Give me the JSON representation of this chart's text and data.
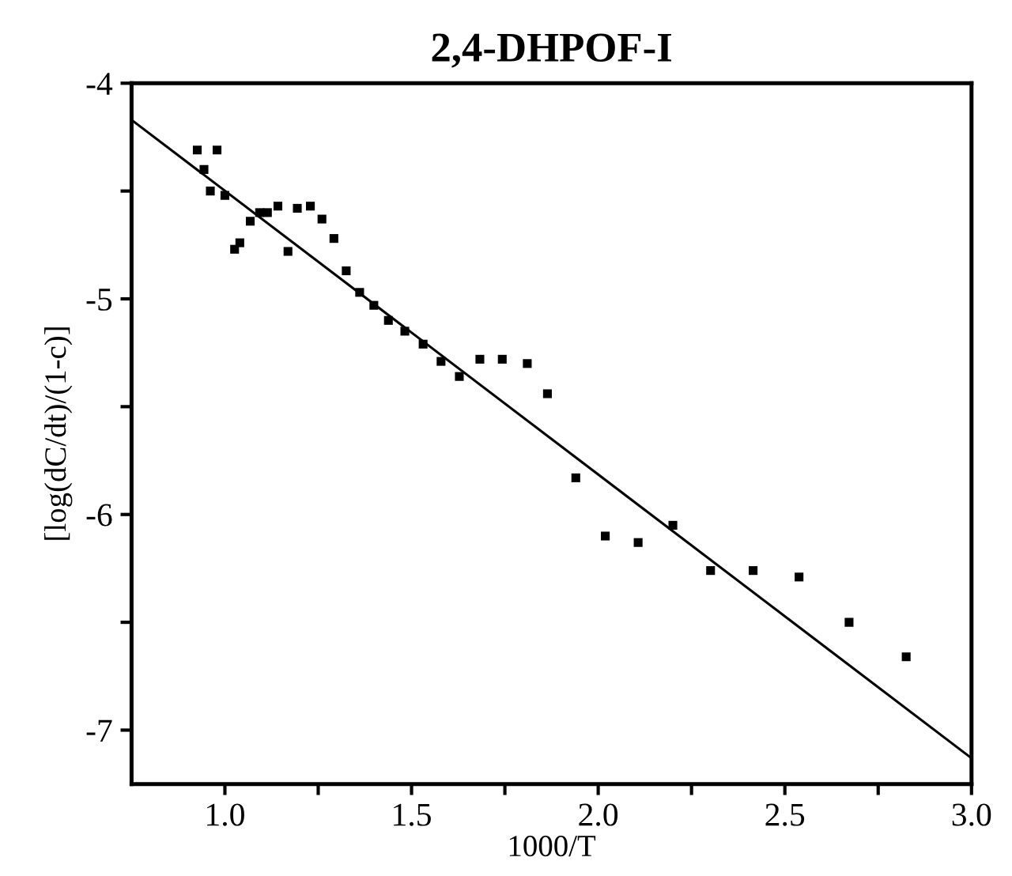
{
  "chart_data": {
    "type": "scatter",
    "title": "2,4-DHPOF-I",
    "xlabel": "1000/T",
    "ylabel": "[log(dC/dt)/(1-c)]",
    "xlim": [
      0.75,
      3.0
    ],
    "ylim": [
      -7.25,
      -4.0
    ],
    "xticks": [
      {
        "value": 1.0,
        "label": "1.0"
      },
      {
        "value": 1.25,
        "label": null
      },
      {
        "value": 1.5,
        "label": "1.5"
      },
      {
        "value": 1.75,
        "label": null
      },
      {
        "value": 2.0,
        "label": "2.0"
      },
      {
        "value": 2.25,
        "label": null
      },
      {
        "value": 2.5,
        "label": "2.5"
      },
      {
        "value": 2.75,
        "label": null
      },
      {
        "value": 3.0,
        "label": "3.0"
      }
    ],
    "yticks": [
      -7,
      {
        "value": -6.5,
        "label": null
      },
      -6,
      {
        "value": -5.5,
        "label": null
      },
      -5,
      {
        "value": -4.5,
        "label": null
      },
      -4
    ],
    "grid": false,
    "series": [
      {
        "marker": "square",
        "color": "#000000",
        "x": [
          0.926,
          0.979,
          0.944,
          0.961,
          1.0,
          1.026,
          1.04,
          1.068,
          1.093,
          1.114,
          1.142,
          1.169,
          1.194,
          1.229,
          1.26,
          1.292,
          1.325,
          1.361,
          1.399,
          1.438,
          1.482,
          1.531,
          1.579,
          1.628,
          1.683,
          1.743,
          1.81,
          1.864,
          1.94,
          2.019,
          2.107,
          2.2,
          2.301,
          2.415,
          2.538,
          2.672,
          2.825
        ],
        "values": [
          -4.31,
          -4.31,
          -4.4,
          -4.5,
          -4.52,
          -4.77,
          -4.74,
          -4.64,
          -4.6,
          -4.6,
          -4.57,
          -4.78,
          -4.58,
          -4.57,
          -4.63,
          -4.72,
          -4.87,
          -4.97,
          -5.03,
          -5.1,
          -5.15,
          -5.21,
          -5.29,
          -5.36,
          -5.28,
          -5.28,
          -5.3,
          -5.44,
          -5.83,
          -6.1,
          -6.13,
          -6.05,
          -6.26,
          -6.26,
          -6.29,
          -6.5,
          -6.66
        ]
      },
      {
        "type": "line",
        "marker": "none",
        "color": "#000000",
        "x": [
          0.75,
          3.0
        ],
        "values": [
          -4.17,
          -7.13
        ]
      }
    ]
  }
}
